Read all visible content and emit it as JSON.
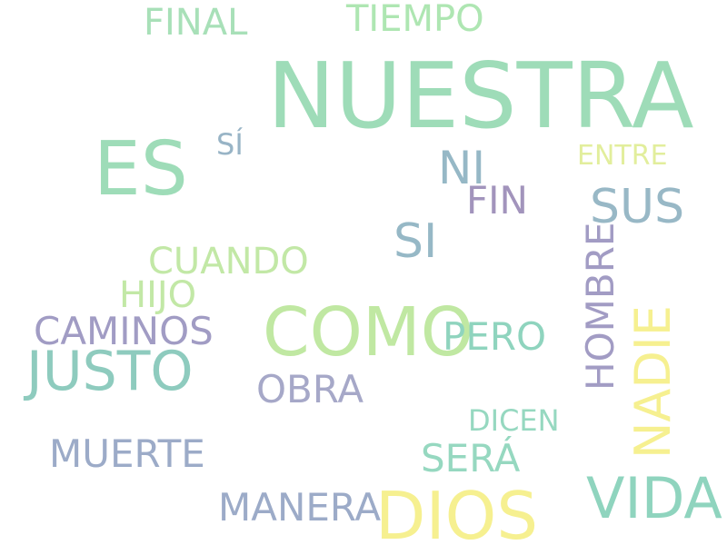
{
  "words": [
    {
      "text": "NUESTRA",
      "color": "#9edcb8"
    },
    {
      "text": "ES",
      "color": "#9edcb8"
    },
    {
      "text": "COMO",
      "color": "#c0e8a2"
    },
    {
      "text": "DIOS",
      "color": "#f6f090"
    },
    {
      "text": "VIDA",
      "color": "#8fd4be"
    },
    {
      "text": "JUSTO",
      "color": "#8ecbbe"
    },
    {
      "text": "SUS",
      "color": "#98b8c6"
    },
    {
      "text": "SI",
      "color": "#96b8c6"
    },
    {
      "text": "NI",
      "color": "#96b8c6"
    },
    {
      "text": "FIN",
      "color": "#a294bc"
    },
    {
      "text": "CAMINOS",
      "color": "#a19cc4"
    },
    {
      "text": "CUANDO",
      "color": "#c2e8a6"
    },
    {
      "text": "HIJO",
      "color": "#c2e8a6"
    },
    {
      "text": "PERO",
      "color": "#8fd4be"
    },
    {
      "text": "OBRA",
      "color": "#a6a8c8"
    },
    {
      "text": "MUERTE",
      "color": "#9cabc8"
    },
    {
      "text": "MANERA",
      "color": "#9cabc8"
    },
    {
      "text": "SERÁ",
      "color": "#96d8c0"
    },
    {
      "text": "DICEN",
      "color": "#96d8c0"
    },
    {
      "text": "FINAL",
      "color": "#a8e0b8"
    },
    {
      "text": "TIEMPO",
      "color": "#aee6b2"
    },
    {
      "text": "SÍ",
      "color": "#98b4c6"
    },
    {
      "text": "ENTRE",
      "color": "#e2ee9c"
    },
    {
      "text": "HOMBRE",
      "color": "#a29cc4"
    },
    {
      "text": "NADIE",
      "color": "#f6f090"
    }
  ]
}
